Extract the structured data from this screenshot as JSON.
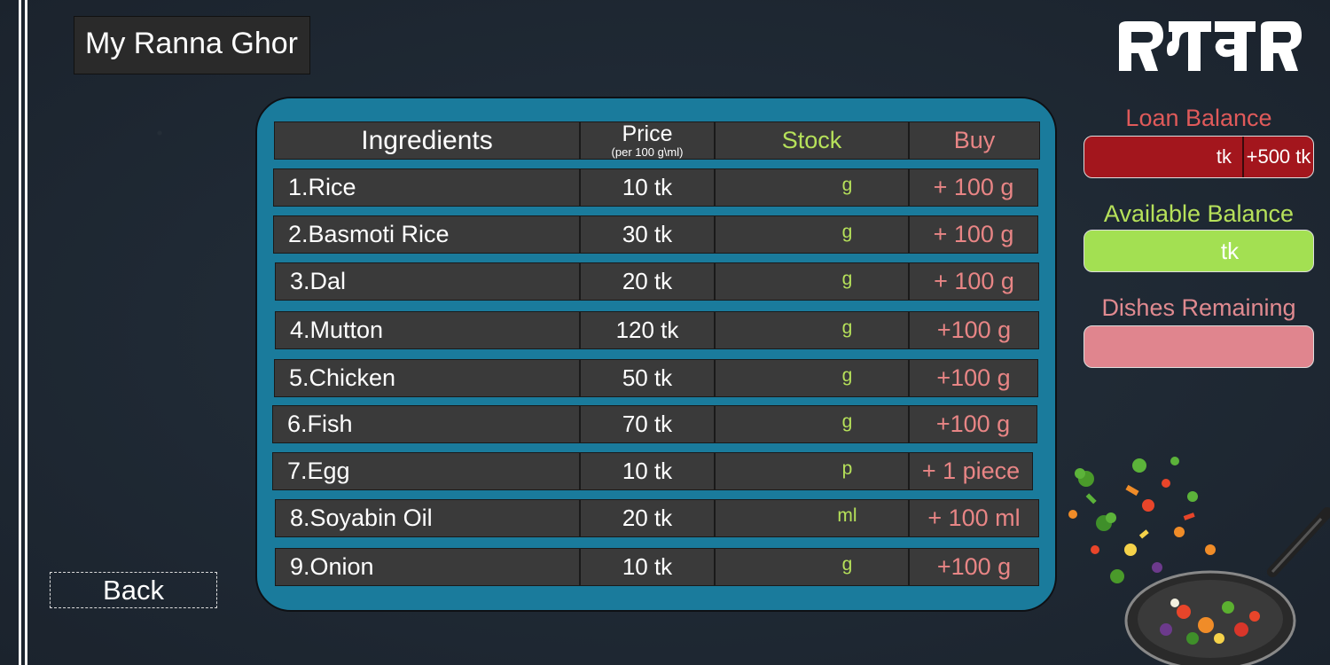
{
  "app": {
    "title": "My Ranna Ghor"
  },
  "table": {
    "headers": {
      "ingredients": "Ingredients",
      "price": "Price",
      "price_sub": "(per 100 g\\ml)",
      "stock": "Stock",
      "buy": "Buy"
    },
    "rows": [
      {
        "name": "1.Rice",
        "price": "10 tk",
        "stock": "g",
        "buy": "+ 100 g"
      },
      {
        "name": "2.Basmoti Rice",
        "price": "30 tk",
        "stock": "g",
        "buy": "+ 100 g"
      },
      {
        "name": "3.Dal",
        "price": "20 tk",
        "stock": "g",
        "buy": "+ 100 g"
      },
      {
        "name": "4.Mutton",
        "price": "120 tk",
        "stock": "g",
        "buy": "+100 g"
      },
      {
        "name": "5.Chicken",
        "price": "50 tk",
        "stock": "g",
        "buy": "+100 g"
      },
      {
        "name": "6.Fish",
        "price": "70 tk",
        "stock": "g",
        "buy": "+100 g"
      },
      {
        "name": "7.Egg",
        "price": "10 tk",
        "stock": "p",
        "buy": "+ 1 piece"
      },
      {
        "name": "8.Soyabin Oil",
        "price": "20 tk",
        "stock": "ml",
        "buy": "+ 100 ml"
      },
      {
        "name": "9.Onion",
        "price": "10 tk",
        "stock": "g",
        "buy": "+100 g"
      }
    ]
  },
  "sidebar": {
    "loan_label": "Loan Balance",
    "loan_value": "tk",
    "loan_add": "+500 tk",
    "available_label": "Available Balance",
    "available_value": "tk",
    "dishes_label": "Dishes Remaining",
    "dishes_value": ""
  },
  "footer": {
    "back_label": "Back"
  },
  "colors": {
    "background": "#1f2833",
    "panel": "#1a7b9c",
    "cell": "#3a3a3a",
    "stock": "#b6e15a",
    "buy": "#e88585",
    "loan": "#a3161d",
    "available": "#a3e052",
    "dishes": "#e0858e"
  }
}
